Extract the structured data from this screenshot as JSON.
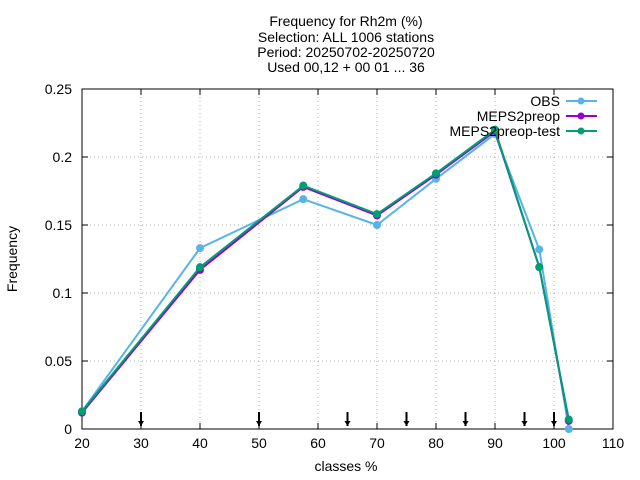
{
  "chart_data": {
    "type": "line",
    "title_lines": [
      "Frequency  for Rh2m (%)",
      "Selection: ALL   1006 stations",
      "Period: 20250702-20250720",
      "Used 00,12 + 00 01 ... 36"
    ],
    "xlabel": "classes %",
    "ylabel": "Frequency",
    "xlim": [
      20,
      110
    ],
    "ylim": [
      0,
      0.25
    ],
    "x_ticks": [
      "20",
      "30",
      "40",
      "50",
      "60",
      "70",
      "80",
      "90",
      "100",
      "110"
    ],
    "y_ticks": [
      "0",
      "0.05",
      "0.1",
      "0.15",
      "0.2",
      "0.25"
    ],
    "grid": true,
    "legend_position": "top-right",
    "arrow_markers_x": [
      30,
      50,
      65,
      75,
      85,
      95,
      100
    ],
    "series": [
      {
        "name": "OBS",
        "color": "#56b4e9",
        "marker": "circle",
        "x": [
          20,
          40,
          57.5,
          70,
          80,
          90,
          97.5,
          102.5
        ],
        "y": [
          0.013,
          0.133,
          0.169,
          0.15,
          0.184,
          0.217,
          0.132,
          0.0
        ]
      },
      {
        "name": "MEPS2preop",
        "color": "#9400d3",
        "marker": "circle",
        "x": [
          20,
          40,
          57.5,
          70,
          80,
          90,
          97.5,
          102.5
        ],
        "y": [
          0.012,
          0.117,
          0.178,
          0.157,
          0.187,
          0.219,
          0.119,
          0.006
        ]
      },
      {
        "name": "MEPS2preop-test",
        "color": "#009e73",
        "marker": "circle",
        "x": [
          20,
          40,
          57.5,
          70,
          80,
          90,
          97.5,
          102.5
        ],
        "y": [
          0.013,
          0.119,
          0.179,
          0.158,
          0.188,
          0.22,
          0.119,
          0.007
        ]
      }
    ]
  }
}
